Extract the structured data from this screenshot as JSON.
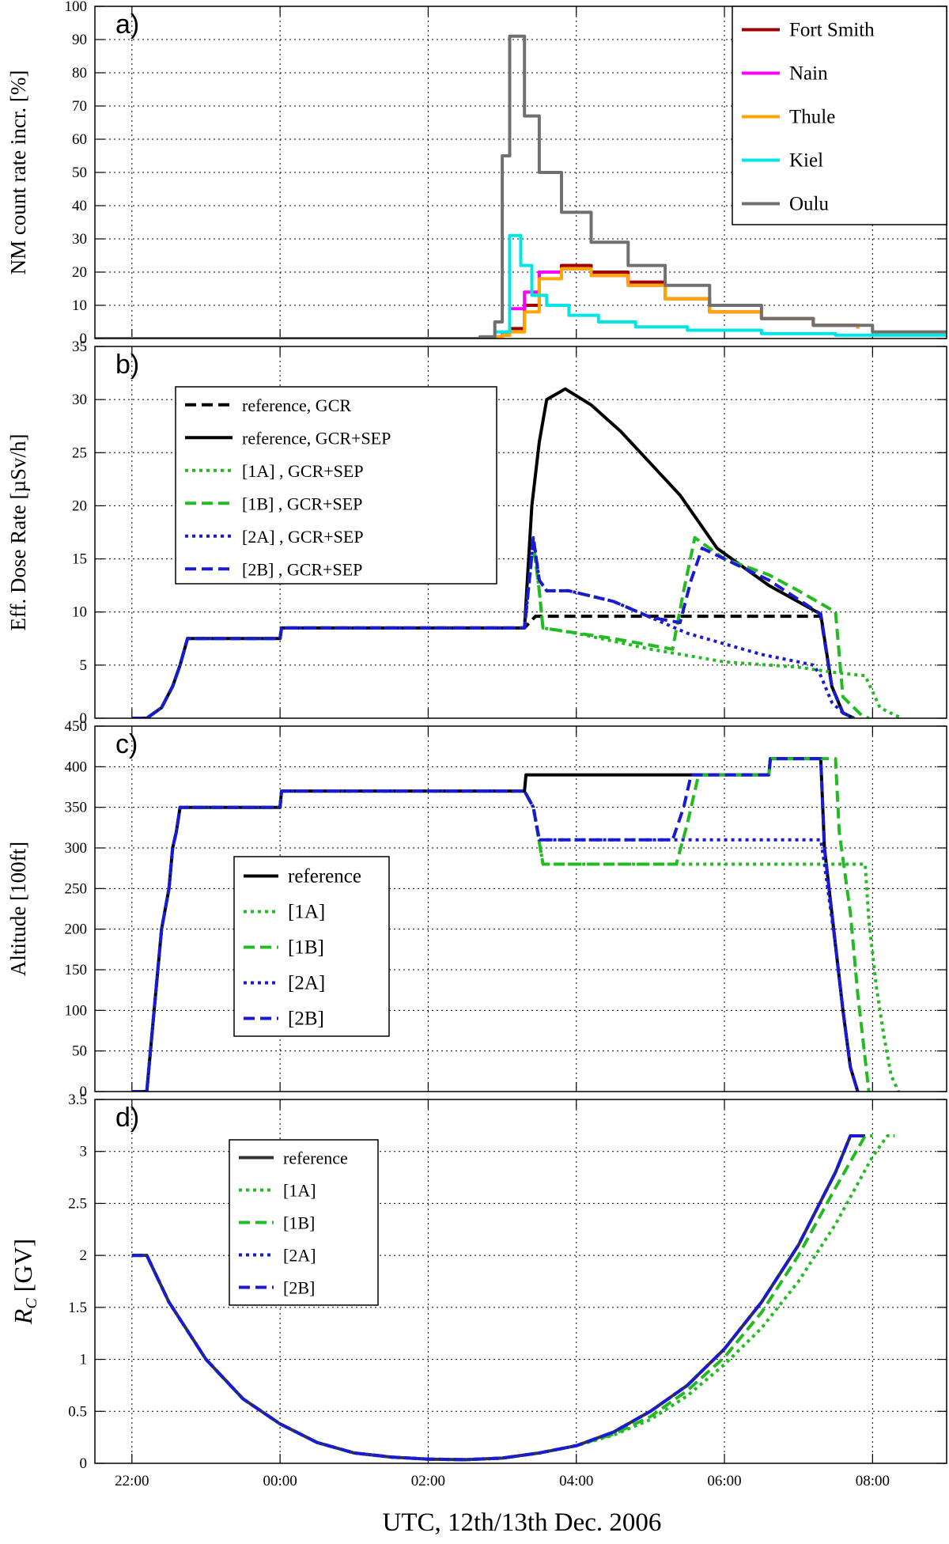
{
  "xaxis": {
    "label": "UTC, 12th/13th Dec. 2006",
    "range": [
      -2.5,
      9.0
    ],
    "ticks": [
      -2,
      0,
      2,
      4,
      6,
      8
    ],
    "tick_labels": [
      "22:00",
      "00:00",
      "02:00",
      "04:00",
      "06:00",
      "08:00"
    ]
  },
  "chart_data": [
    {
      "panel": "a)",
      "type": "line",
      "step": true,
      "ylabel": "NM count rate incr. [%]",
      "ylim": [
        0,
        100
      ],
      "yticks": [
        0,
        10,
        20,
        30,
        40,
        50,
        60,
        70,
        80,
        90,
        100
      ],
      "grid": true,
      "legend_position": "top-right",
      "series": [
        {
          "name": "Fort Smith",
          "color": "#a00000",
          "dash": "solid",
          "x": [
            0,
            2.9,
            3.0,
            3.1,
            3.3,
            3.5,
            3.8,
            4.2,
            4.7,
            5.2,
            5.8,
            6.5,
            7.2,
            7.8
          ],
          "y": [
            0,
            0.5,
            1,
            3,
            10,
            20,
            22,
            20,
            17,
            12,
            8,
            6,
            4,
            3
          ]
        },
        {
          "name": "Nain",
          "color": "#ff00ff",
          "dash": "solid",
          "x": [
            0,
            2.9,
            3.0,
            3.1,
            3.3,
            3.5,
            3.8,
            4.2,
            4.7,
            5.2,
            5.8,
            6.5,
            7.2,
            7.8
          ],
          "y": [
            0,
            0.5,
            2,
            9,
            14,
            20,
            21,
            19,
            16,
            12,
            8,
            6,
            4,
            3
          ]
        },
        {
          "name": "Thule",
          "color": "#ffa500",
          "dash": "solid",
          "x": [
            0,
            2.9,
            3.0,
            3.1,
            3.3,
            3.5,
            3.8,
            4.2,
            4.7,
            5.2,
            5.8,
            6.5,
            7.2,
            7.8
          ],
          "y": [
            0,
            0.5,
            1,
            2,
            8,
            18,
            21,
            19,
            16,
            12,
            8,
            6,
            4,
            3
          ]
        },
        {
          "name": "Kiel",
          "color": "#00e5e5",
          "dash": "solid",
          "x": [
            -0.5,
            2.7,
            2.9,
            3.1,
            3.25,
            3.4,
            3.6,
            3.9,
            4.3,
            4.8,
            5.5,
            6.5,
            7.5,
            9.0
          ],
          "y": [
            0,
            0.5,
            2,
            31,
            22,
            13,
            10,
            7,
            5,
            3.5,
            2.5,
            1.5,
            1,
            1
          ]
        },
        {
          "name": "Oulu",
          "color": "#707070",
          "dash": "solid",
          "x": [
            -2.5,
            -2.0,
            0,
            2.7,
            2.9,
            3.0,
            3.1,
            3.3,
            3.5,
            3.8,
            4.2,
            4.7,
            5.2,
            5.8,
            6.5,
            7.2,
            8.0,
            9.0
          ],
          "y": [
            0,
            0,
            0,
            0.5,
            5,
            55,
            91,
            67,
            50,
            38,
            29,
            22,
            16,
            10,
            6,
            4,
            2,
            2
          ]
        }
      ]
    },
    {
      "panel": "b)",
      "type": "line",
      "ylabel": "Eff. Dose Rate [µSv/h]",
      "ylim": [
        0,
        35
      ],
      "yticks": [
        0,
        5,
        10,
        15,
        20,
        25,
        30,
        35
      ],
      "grid": true,
      "legend_position": "top-left",
      "series": [
        {
          "name": "reference, GCR",
          "color": "#000000",
          "dash": "dashed",
          "x": [
            -2.0,
            -1.8,
            -1.6,
            -1.45,
            -1.35,
            -1.25,
            0,
            0.02,
            3.3,
            3.45,
            6.6,
            7.3,
            7.45,
            7.6,
            7.75
          ],
          "y": [
            0,
            0,
            1,
            3,
            5,
            7.5,
            7.5,
            8.5,
            8.5,
            9.6,
            9.6,
            9.6,
            3,
            0.5,
            0
          ]
        },
        {
          "name": "reference, GCR+SEP",
          "color": "#000000",
          "dash": "solid",
          "x": [
            -2.0,
            -1.8,
            -1.6,
            -1.45,
            -1.35,
            -1.25,
            0,
            0.02,
            3.3,
            3.4,
            3.5,
            3.6,
            3.85,
            4.2,
            4.6,
            5.0,
            5.4,
            5.9,
            6.6,
            7.3,
            7.45,
            7.6,
            7.75
          ],
          "y": [
            0,
            0,
            1,
            3,
            5,
            7.5,
            7.5,
            8.5,
            8.5,
            20,
            26,
            30,
            31,
            29.5,
            27,
            24,
            21,
            16,
            12.5,
            9.8,
            3,
            0.5,
            0
          ]
        },
        {
          "name": "[1A] , GCR+SEP",
          "color": "#22bb22",
          "dash": "dotted",
          "x": [
            -2.0,
            -1.8,
            -1.6,
            -1.45,
            -1.35,
            -1.25,
            0,
            0.02,
            3.3,
            3.42,
            3.5,
            3.55,
            4.0,
            5.0,
            6.0,
            7.0,
            7.5,
            7.9,
            8.1,
            8.3,
            8.4
          ],
          "y": [
            0,
            0,
            1,
            3,
            5,
            7.5,
            7.5,
            8.5,
            8.5,
            16.5,
            12,
            8.5,
            8,
            6.5,
            5.3,
            4.8,
            4.3,
            4,
            1,
            0.3,
            0
          ]
        },
        {
          "name": "[1B] , GCR+SEP",
          "color": "#22bb22",
          "dash": "dashed",
          "x": [
            -2.0,
            -1.8,
            -1.6,
            -1.45,
            -1.35,
            -1.25,
            0,
            0.02,
            3.3,
            3.42,
            3.5,
            3.55,
            4.5,
            5.3,
            5.45,
            5.6,
            6.0,
            6.6,
            7.0,
            7.5,
            7.6,
            7.85,
            7.95
          ],
          "y": [
            0,
            0,
            1,
            3,
            5,
            7.5,
            7.5,
            8.5,
            8.5,
            16.5,
            12,
            8.5,
            7.5,
            6.5,
            12,
            17,
            15,
            13.5,
            12,
            10,
            2,
            0.3,
            0
          ]
        },
        {
          "name": "[2A] , GCR+SEP",
          "color": "#1a1ad0",
          "dash": "dotted",
          "x": [
            -2.0,
            -1.8,
            -1.6,
            -1.45,
            -1.35,
            -1.25,
            0,
            0.02,
            3.3,
            3.42,
            3.5,
            3.6,
            3.9,
            4.5,
            5.0,
            5.5,
            6.0,
            6.5,
            7.0,
            7.2,
            7.3,
            7.45,
            7.6,
            7.75
          ],
          "y": [
            0,
            0,
            1,
            3,
            5,
            7.5,
            7.5,
            8.5,
            8.5,
            17,
            13,
            12,
            12,
            11,
            9.5,
            8,
            7,
            6,
            5.3,
            5,
            4,
            1.5,
            0.5,
            0
          ]
        },
        {
          "name": "[2B] , GCR+SEP",
          "color": "#1a1ad0",
          "dash": "dashed",
          "x": [
            -2.0,
            -1.8,
            -1.6,
            -1.45,
            -1.35,
            -1.25,
            0,
            0.02,
            3.3,
            3.42,
            3.5,
            3.6,
            3.9,
            4.5,
            5.0,
            5.4,
            5.55,
            5.7,
            6.0,
            6.6,
            7.3,
            7.45,
            7.6,
            7.75
          ],
          "y": [
            0,
            0,
            1,
            3,
            5,
            7.5,
            7.5,
            8.5,
            8.5,
            17,
            13,
            12,
            12,
            11,
            9.5,
            9,
            13,
            16,
            15,
            13,
            9.8,
            3,
            0.5,
            0
          ]
        }
      ]
    },
    {
      "panel": "c)",
      "type": "line",
      "ylabel": "Altitude [100ft]",
      "ylim": [
        0,
        450
      ],
      "yticks": [
        0,
        50,
        100,
        150,
        200,
        250,
        300,
        350,
        400,
        450
      ],
      "grid": true,
      "legend_position": "center-left",
      "series": [
        {
          "name": "reference",
          "color": "#000000",
          "dash": "solid",
          "x": [
            -2.0,
            -1.8,
            -1.7,
            -1.6,
            -1.5,
            -1.45,
            -1.4,
            -1.35,
            0,
            0.02,
            3.3,
            3.32,
            5.5,
            5.52,
            6.6,
            6.62,
            7.3,
            7.35,
            7.5,
            7.6,
            7.7,
            7.8
          ],
          "y": [
            0,
            0,
            100,
            200,
            250,
            300,
            320,
            350,
            350,
            370,
            370,
            390,
            390,
            390,
            390,
            410,
            410,
            300,
            180,
            100,
            30,
            0
          ]
        },
        {
          "name": "[1A]",
          "color": "#22bb22",
          "dash": "dotted",
          "x": [
            -2.0,
            -1.8,
            -1.7,
            -1.6,
            -1.5,
            -1.45,
            -1.4,
            -1.35,
            0,
            0.02,
            3.3,
            3.42,
            3.55,
            7.9,
            7.95,
            8.05,
            8.15,
            8.25,
            8.35
          ],
          "y": [
            0,
            0,
            100,
            200,
            250,
            300,
            320,
            350,
            350,
            370,
            370,
            350,
            280,
            280,
            210,
            130,
            70,
            20,
            0
          ]
        },
        {
          "name": "[1B]",
          "color": "#22bb22",
          "dash": "dashed",
          "x": [
            -2.0,
            -1.8,
            -1.7,
            -1.6,
            -1.5,
            -1.45,
            -1.4,
            -1.35,
            0,
            0.02,
            3.3,
            3.42,
            3.55,
            5.35,
            5.5,
            5.65,
            6.6,
            6.62,
            7.5,
            7.55,
            7.7,
            7.8,
            7.9,
            7.95
          ],
          "y": [
            0,
            0,
            100,
            200,
            250,
            300,
            320,
            350,
            350,
            370,
            370,
            350,
            280,
            280,
            330,
            390,
            390,
            410,
            410,
            320,
            220,
            120,
            40,
            0
          ]
        },
        {
          "name": "[2A]",
          "color": "#1a1ad0",
          "dash": "dotted",
          "x": [
            -2.0,
            -1.8,
            -1.7,
            -1.6,
            -1.5,
            -1.45,
            -1.4,
            -1.35,
            0,
            0.02,
            3.3,
            3.42,
            3.5,
            7.3,
            7.35,
            7.5,
            7.6,
            7.7,
            7.8
          ],
          "y": [
            0,
            0,
            100,
            200,
            250,
            300,
            320,
            350,
            350,
            370,
            370,
            350,
            310,
            310,
            280,
            180,
            100,
            30,
            0
          ]
        },
        {
          "name": "[2B]",
          "color": "#1a1ad0",
          "dash": "dashed",
          "x": [
            -2.0,
            -1.8,
            -1.7,
            -1.6,
            -1.5,
            -1.45,
            -1.4,
            -1.35,
            0,
            0.02,
            3.3,
            3.42,
            3.5,
            5.3,
            5.45,
            5.55,
            6.6,
            6.62,
            7.3,
            7.35,
            7.5,
            7.6,
            7.7,
            7.8
          ],
          "y": [
            0,
            0,
            100,
            200,
            250,
            300,
            320,
            350,
            350,
            370,
            370,
            350,
            310,
            310,
            350,
            390,
            390,
            410,
            410,
            300,
            180,
            100,
            30,
            0
          ]
        }
      ]
    },
    {
      "panel": "d)",
      "type": "line",
      "ylabel": "R_C [GV]",
      "ylim": [
        0,
        3.5
      ],
      "yticks": [
        0,
        0.5,
        1,
        1.5,
        2,
        2.5,
        3,
        3.5
      ],
      "ytick_labels": [
        "0",
        "0.5",
        "1",
        "1.5",
        "2",
        "2.5",
        "3",
        "3.5"
      ],
      "grid": true,
      "legend_position": "top-left",
      "series": [
        {
          "name": "reference",
          "color": "#333333",
          "dash": "solid",
          "x": [
            -2.0,
            -1.8,
            -1.5,
            -1.0,
            -0.5,
            0,
            0.5,
            1.0,
            1.5,
            2.0,
            2.5,
            3.0,
            3.5,
            4.0,
            4.5,
            5.0,
            5.5,
            6.0,
            6.5,
            7.0,
            7.5,
            7.7,
            7.9
          ],
          "y": [
            2.0,
            2.0,
            1.55,
            1.0,
            0.62,
            0.38,
            0.2,
            0.1,
            0.06,
            0.04,
            0.035,
            0.05,
            0.1,
            0.17,
            0.3,
            0.5,
            0.75,
            1.1,
            1.55,
            2.1,
            2.8,
            3.15,
            3.15
          ]
        },
        {
          "name": "[1A]",
          "color": "#22bb22",
          "dash": "dotted",
          "x": [
            -2.0,
            -1.8,
            -1.5,
            -1.0,
            -0.5,
            0,
            0.5,
            1.0,
            1.5,
            2.0,
            2.5,
            3.0,
            3.5,
            4.0,
            4.5,
            5.0,
            5.5,
            6.0,
            6.5,
            7.0,
            7.5,
            8.0,
            8.2,
            8.3
          ],
          "y": [
            2.0,
            2.0,
            1.55,
            1.0,
            0.62,
            0.38,
            0.2,
            0.1,
            0.06,
            0.04,
            0.035,
            0.05,
            0.1,
            0.17,
            0.27,
            0.42,
            0.65,
            0.95,
            1.3,
            1.75,
            2.3,
            2.95,
            3.15,
            3.15
          ]
        },
        {
          "name": "[1B]",
          "color": "#22bb22",
          "dash": "dashed",
          "x": [
            -2.0,
            -1.8,
            -1.5,
            -1.0,
            -0.5,
            0,
            0.5,
            1.0,
            1.5,
            2.0,
            2.5,
            3.0,
            3.5,
            4.0,
            4.5,
            5.0,
            5.5,
            6.0,
            6.5,
            7.0,
            7.5,
            7.9,
            8.0
          ],
          "y": [
            2.0,
            2.0,
            1.55,
            1.0,
            0.62,
            0.38,
            0.2,
            0.1,
            0.06,
            0.04,
            0.035,
            0.05,
            0.1,
            0.17,
            0.28,
            0.45,
            0.7,
            1.02,
            1.45,
            2.0,
            2.65,
            3.15,
            3.15
          ]
        },
        {
          "name": "[2A]",
          "color": "#1a1ad0",
          "dash": "dotted",
          "x": [
            -2.0,
            -1.8,
            -1.5,
            -1.0,
            -0.5,
            0,
            0.5,
            1.0,
            1.5,
            2.0,
            2.5,
            3.0,
            3.5,
            4.0,
            4.5,
            5.0,
            5.5,
            6.0,
            6.5,
            7.0,
            7.5,
            7.7,
            7.9
          ],
          "y": [
            2.0,
            2.0,
            1.55,
            1.0,
            0.62,
            0.38,
            0.2,
            0.1,
            0.06,
            0.04,
            0.035,
            0.05,
            0.1,
            0.17,
            0.3,
            0.5,
            0.75,
            1.1,
            1.55,
            2.1,
            2.8,
            3.15,
            3.15
          ]
        },
        {
          "name": "[2B]",
          "color": "#1a1ad0",
          "dash": "dashed",
          "x": [
            -2.0,
            -1.8,
            -1.5,
            -1.0,
            -0.5,
            0,
            0.5,
            1.0,
            1.5,
            2.0,
            2.5,
            3.0,
            3.5,
            4.0,
            4.5,
            5.0,
            5.5,
            6.0,
            6.5,
            7.0,
            7.5,
            7.7,
            7.9
          ],
          "y": [
            2.0,
            2.0,
            1.55,
            1.0,
            0.62,
            0.38,
            0.2,
            0.1,
            0.06,
            0.04,
            0.035,
            0.05,
            0.1,
            0.17,
            0.3,
            0.5,
            0.75,
            1.1,
            1.55,
            2.1,
            2.8,
            3.15,
            3.15
          ]
        }
      ]
    }
  ]
}
